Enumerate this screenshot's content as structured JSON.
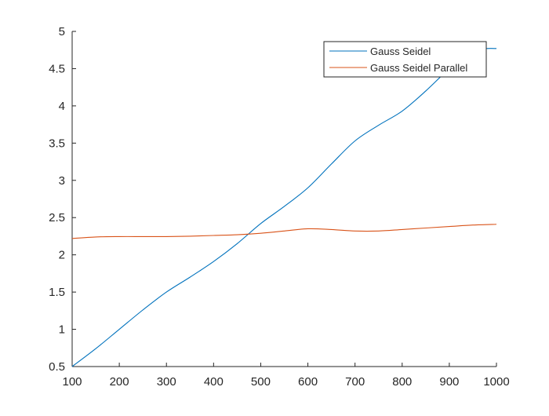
{
  "chart_data": {
    "type": "line",
    "title": "",
    "xlabel": "",
    "ylabel": "",
    "xlim": [
      100,
      1000
    ],
    "ylim": [
      0.5,
      5
    ],
    "x_ticks": [
      100,
      200,
      300,
      400,
      500,
      600,
      700,
      800,
      900,
      1000
    ],
    "x_tick_labels": [
      "100",
      "200",
      "300",
      "400",
      "500",
      "600",
      "700",
      "800",
      "900",
      "1000"
    ],
    "y_ticks": [
      0.5,
      1,
      1.5,
      2,
      2.5,
      3,
      3.5,
      4,
      4.5,
      5
    ],
    "y_tick_labels": [
      "0.5",
      "1",
      "1.5",
      "2",
      "2.5",
      "3",
      "3.5",
      "4",
      "4.5",
      "5"
    ],
    "grid": false,
    "legend_position": "top-right",
    "series": [
      {
        "name": "Gauss Seidel",
        "color": "#0072BD",
        "x": [
          100,
          150,
          200,
          250,
          300,
          350,
          400,
          450,
          500,
          550,
          600,
          650,
          700,
          750,
          800,
          850,
          900,
          950,
          980,
          1000
        ],
        "y": [
          0.5,
          0.74,
          1.0,
          1.26,
          1.5,
          1.7,
          1.91,
          2.15,
          2.42,
          2.65,
          2.9,
          3.22,
          3.53,
          3.74,
          3.93,
          4.2,
          4.5,
          4.75,
          4.77,
          4.77
        ]
      },
      {
        "name": "Gauss Seidel Parallel",
        "color": "#D95319",
        "x": [
          100,
          150,
          200,
          250,
          300,
          350,
          400,
          450,
          500,
          550,
          600,
          650,
          700,
          750,
          800,
          850,
          900,
          950,
          1000
        ],
        "y": [
          2.22,
          2.24,
          2.245,
          2.245,
          2.245,
          2.25,
          2.26,
          2.27,
          2.29,
          2.32,
          2.35,
          2.34,
          2.32,
          2.32,
          2.34,
          2.36,
          2.38,
          2.4,
          2.41
        ]
      }
    ]
  }
}
